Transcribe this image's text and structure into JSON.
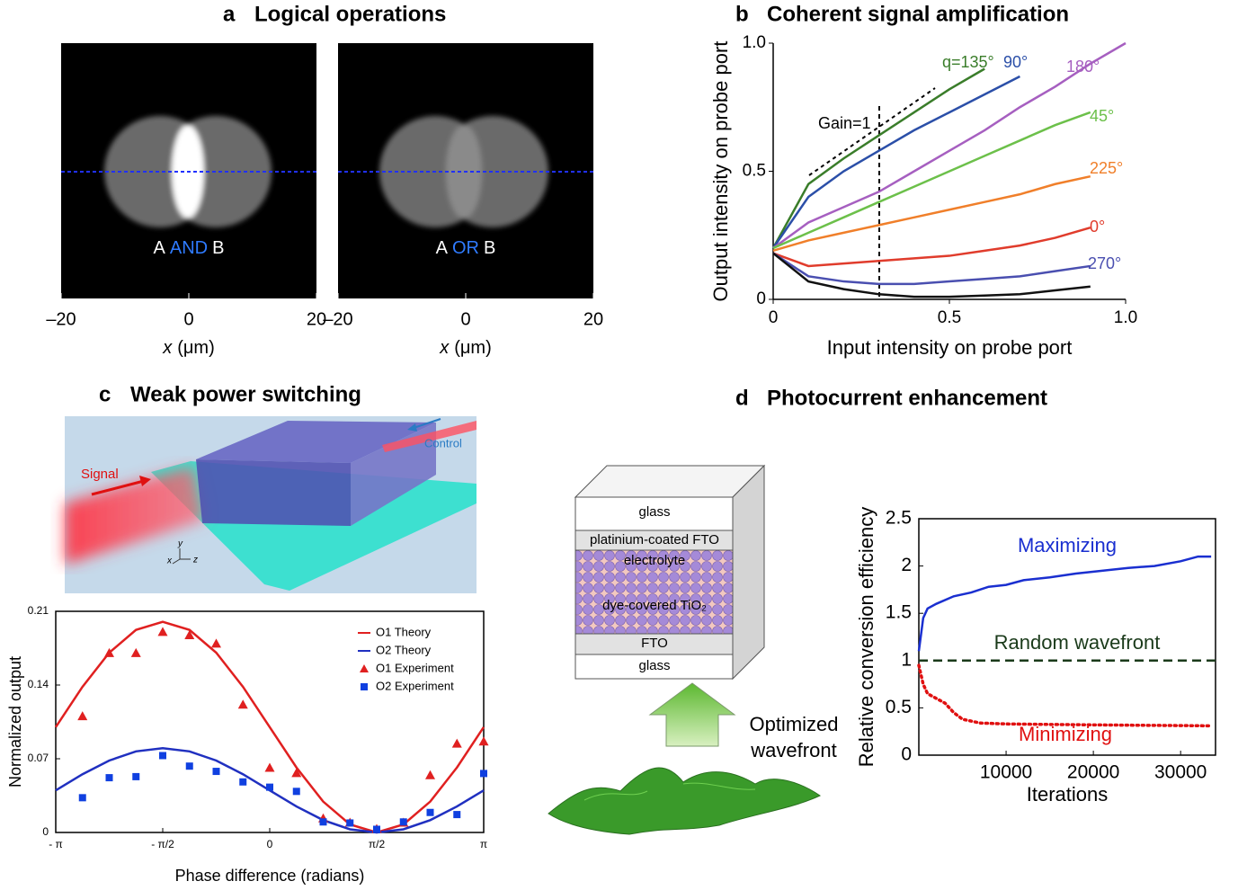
{
  "panel_a": {
    "label": "a",
    "title": "Logical operations",
    "images": [
      {
        "caption": [
          "A",
          "AND",
          "B"
        ]
      },
      {
        "caption": [
          "A",
          "OR",
          "B"
        ]
      }
    ],
    "xlim": [
      -20,
      20
    ],
    "xticks": [
      {
        "value": -20,
        "label": "–20"
      },
      0,
      20
    ],
    "xlabel": [
      "x",
      "(μm)"
    ]
  },
  "panel_c_diagram": {
    "signal": "Signal",
    "control": "Control",
    "axis_x": "x",
    "axis_y": "y",
    "axis_z": "z"
  },
  "panel_d_diagram": {
    "layers": [
      "glass",
      "platinium-coated FTO",
      "electrolyte",
      "dye-covered TiO₂",
      "FTO",
      "glass"
    ],
    "arrow_label": [
      "Optimized",
      "wavefront"
    ]
  },
  "chart_data": [
    {
      "type": "line",
      "label": "b",
      "title": "Coherent signal amplification",
      "x_label": "Input intensity on probe port",
      "y_label": "Output intensity on probe port",
      "annotations": [
        "Gain=1"
      ],
      "x": [
        0,
        0.1,
        0.2,
        0.3,
        0.4,
        0.5,
        0.6,
        0.7,
        0.8,
        0.9,
        1.0
      ],
      "xlim": [
        0,
        1
      ],
      "ylim": [
        0,
        1
      ],
      "xticks": [
        0,
        0.5,
        {
          "value": 1,
          "label": "1.0"
        }
      ],
      "yticks": [
        0,
        0.5,
        {
          "value": 1,
          "label": "1.0"
        }
      ],
      "series": [
        {
          "name": "q=135°",
          "color": "#3a7d2a",
          "values": [
            0.2,
            0.45,
            0.55,
            0.64,
            0.73,
            0.82,
            0.9,
            null,
            null,
            null,
            null
          ]
        },
        {
          "name": "90°",
          "color": "#2b4fa8",
          "values": [
            0.2,
            0.4,
            0.5,
            0.58,
            0.66,
            0.73,
            0.8,
            0.87,
            null,
            null,
            null
          ]
        },
        {
          "name": "180°",
          "color": "#a65fc0",
          "values": [
            0.2,
            0.3,
            0.36,
            0.42,
            0.5,
            0.58,
            0.66,
            0.75,
            0.83,
            0.92,
            1.0
          ]
        },
        {
          "name": "45°",
          "color": "#6cc04a",
          "values": [
            0.2,
            0.26,
            0.32,
            0.38,
            0.44,
            0.5,
            0.56,
            0.62,
            0.68,
            0.73,
            null
          ]
        },
        {
          "name": "225°",
          "color": "#f07f2a",
          "values": [
            0.19,
            0.23,
            0.26,
            0.29,
            0.32,
            0.35,
            0.38,
            0.41,
            0.45,
            0.48,
            null
          ]
        },
        {
          "name": "0°",
          "color": "#e03c2c",
          "values": [
            0.18,
            0.13,
            0.14,
            0.15,
            0.16,
            0.17,
            0.19,
            0.21,
            0.24,
            0.28,
            null
          ]
        },
        {
          "name": "270°",
          "color": "#4a4fb0",
          "values": [
            0.18,
            0.09,
            0.07,
            0.06,
            0.06,
            0.07,
            0.08,
            0.09,
            0.11,
            0.13,
            null
          ]
        },
        {
          "color": "#111111",
          "values": [
            0.18,
            0.07,
            0.04,
            0.02,
            0.01,
            0.01,
            0.015,
            0.02,
            0.035,
            0.05,
            null
          ]
        }
      ]
    },
    {
      "type": "line",
      "label": "c",
      "title": "Weak power switching",
      "x_label": "Phase difference (radians)",
      "y_label": "Normalized output",
      "legend": "upper right",
      "xlim": [
        -3.1416,
        3.1416
      ],
      "ylim": [
        0,
        0.21
      ],
      "xticks": [
        {
          "value": -3.1416,
          "label": "- π"
        },
        {
          "value": -1.5708,
          "label": "- π/2"
        },
        0,
        {
          "value": 1.5708,
          "label": "π/2"
        },
        {
          "value": 3.1416,
          "label": "π"
        }
      ],
      "yticks": [
        0,
        0.07,
        0.14,
        0.21
      ],
      "series": [
        {
          "name": "O1 Theory",
          "color": "#e02020",
          "mode": "line",
          "x": [
            -3.1416,
            -2.7489,
            -2.3562,
            -1.9635,
            -1.5708,
            -1.1781,
            -0.7854,
            -0.3927,
            0,
            0.3927,
            0.7854,
            1.1781,
            1.5708,
            1.9635,
            2.3562,
            2.7489,
            3.1416
          ],
          "values": [
            0.1,
            0.1383,
            0.1707,
            0.1924,
            0.2,
            0.1924,
            0.1707,
            0.1383,
            0.1,
            0.0617,
            0.0293,
            0.0076,
            0,
            0.0076,
            0.0293,
            0.0617,
            0.1
          ]
        },
        {
          "name": "O2 Theory",
          "color": "#2030c0",
          "mode": "line",
          "x": [
            -3.1416,
            -2.7489,
            -2.3562,
            -1.9635,
            -1.5708,
            -1.1781,
            -0.7854,
            -0.3927,
            0,
            0.3927,
            0.7854,
            1.1781,
            1.5708,
            1.9635,
            2.3562,
            2.7489,
            3.1416
          ],
          "values": [
            0.04,
            0.0553,
            0.0683,
            0.077,
            0.08,
            0.077,
            0.0683,
            0.0553,
            0.04,
            0.0247,
            0.0117,
            0.003,
            0,
            0.003,
            0.0117,
            0.0247,
            0.04
          ]
        },
        {
          "name": "O1 Experiment",
          "color": "#e02020",
          "mode": "triangle",
          "x": [
            -2.7489,
            -2.3562,
            -1.9635,
            -1.5708,
            -1.1781,
            -0.7854,
            -0.3927,
            0,
            0.3927,
            0.7854,
            1.1781,
            1.5708,
            1.9635,
            2.3562,
            2.7489,
            3.1416
          ],
          "values": [
            0.11,
            0.17,
            0.17,
            0.19,
            0.187,
            0.179,
            0.121,
            0.061,
            0.056,
            0.013,
            0.009,
            0.003,
            0.009,
            0.054,
            0.084,
            0.086
          ]
        },
        {
          "name": "O2 Experiment",
          "color": "#1040e0",
          "mode": "square",
          "x": [
            -2.7489,
            -2.3562,
            -1.9635,
            -1.5708,
            -1.1781,
            -0.7854,
            -0.3927,
            0,
            0.3927,
            0.7854,
            1.1781,
            1.5708,
            1.9635,
            2.3562,
            2.7489,
            3.1416
          ],
          "values": [
            0.033,
            0.052,
            0.053,
            0.073,
            0.063,
            0.058,
            0.048,
            0.043,
            0.039,
            0.01,
            0.009,
            0.003,
            0.01,
            0.019,
            0.017,
            0.056
          ]
        }
      ]
    },
    {
      "type": "line",
      "label": "d",
      "title": "Photocurrent enhancement",
      "x_label": "Iterations",
      "y_label": "Relative conversion efficiency",
      "xlim": [
        0,
        34000
      ],
      "ylim": [
        0,
        2.5
      ],
      "xticks": [
        10000,
        20000,
        30000
      ],
      "yticks": [
        0,
        0.5,
        1,
        1.5,
        2,
        2.5
      ],
      "series": [
        {
          "name": "Maximizing",
          "color": "#1a2fd0",
          "dash": "solid",
          "x": [
            0,
            500,
            1000,
            2000,
            4000,
            6000,
            8000,
            10000,
            12000,
            15000,
            18000,
            21000,
            24000,
            27000,
            30000,
            32000,
            33500
          ],
          "values": [
            1.1,
            1.45,
            1.55,
            1.6,
            1.68,
            1.72,
            1.78,
            1.8,
            1.85,
            1.88,
            1.92,
            1.95,
            1.98,
            2.0,
            2.05,
            2.1,
            2.1
          ]
        },
        {
          "name": "Random wavefront",
          "color": "#1a3a1a",
          "dash": "dashed",
          "x": [
            0,
            34000
          ],
          "values": [
            1,
            1
          ]
        },
        {
          "name": "Minimizing",
          "color": "#e01010",
          "dash": "dotted",
          "x": [
            0,
            500,
            1000,
            2000,
            3000,
            4000,
            5000,
            7000,
            10000,
            20000,
            33500
          ],
          "values": [
            0.95,
            0.75,
            0.65,
            0.6,
            0.55,
            0.45,
            0.38,
            0.34,
            0.33,
            0.32,
            0.31
          ]
        }
      ]
    }
  ]
}
